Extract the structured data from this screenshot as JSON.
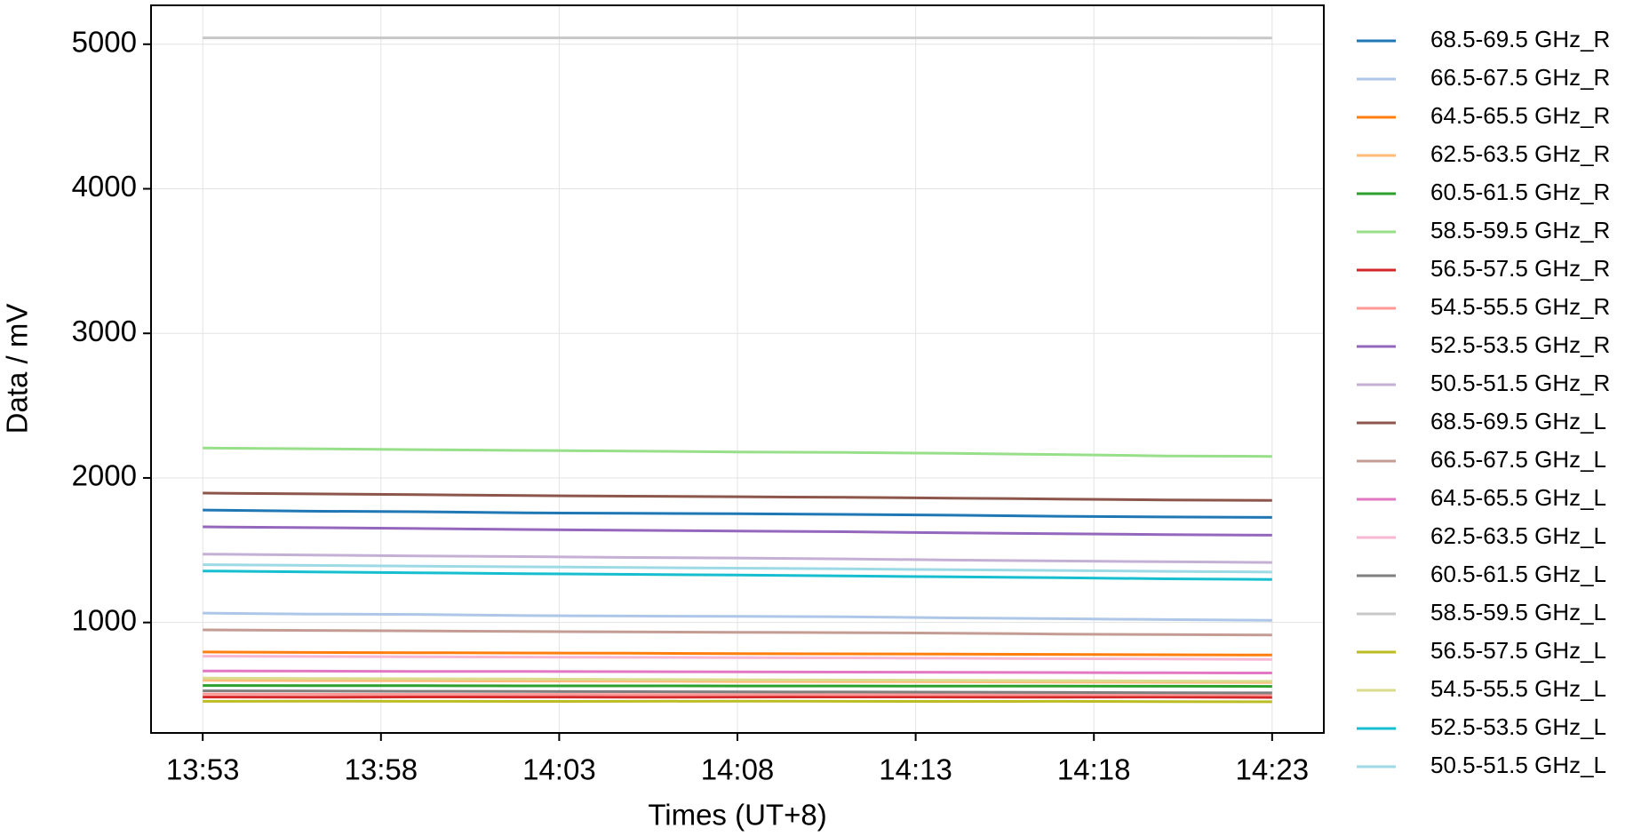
{
  "chart_data": {
    "type": "line",
    "x_label": "Times (UT+8)",
    "y_label": "Data / mV",
    "x": [
      "13:53",
      "13:56",
      "13:59",
      "14:02",
      "14:05",
      "14:08",
      "14:11",
      "14:14",
      "14:17",
      "14:20",
      "14:23"
    ],
    "xlim": [
      "13:51:33",
      "14:24:27"
    ],
    "xticks": [
      "13:53",
      "13:58",
      "14:03",
      "14:08",
      "14:13",
      "14:18",
      "14:23"
    ],
    "ylim": [
      236,
      5269
    ],
    "yticks": [
      1000,
      2000,
      3000,
      4000,
      5000
    ],
    "grid": true,
    "legend": "outside-right",
    "series": [
      {
        "name": "68.5-69.5 GHz_R",
        "color": "#1f77b4",
        "values": [
          1778,
          1770,
          1766,
          1758,
          1755,
          1752,
          1748,
          1742,
          1735,
          1730,
          1727
        ]
      },
      {
        "name": "66.5-67.5 GHz_R",
        "color": "#aec7e8",
        "values": [
          1065,
          1058,
          1056,
          1048,
          1045,
          1042,
          1040,
          1032,
          1026,
          1020,
          1015
        ]
      },
      {
        "name": "64.5-65.5 GHz_R",
        "color": "#ff7f0e",
        "values": [
          796,
          793,
          791,
          789,
          787,
          785,
          783,
          781,
          779,
          777,
          775
        ]
      },
      {
        "name": "62.5-63.5 GHz_R",
        "color": "#ffbb78",
        "values": [
          600,
          598,
          597,
          595,
          594,
          592,
          591,
          590,
          588,
          586,
          585
        ]
      },
      {
        "name": "60.5-61.5 GHz_R",
        "color": "#2ca02c",
        "values": [
          564,
          563,
          563,
          562,
          562,
          561,
          561,
          560,
          560,
          559,
          558
        ]
      },
      {
        "name": "58.5-59.5 GHz_R",
        "color": "#98df8a",
        "values": [
          2207,
          2202,
          2196,
          2190,
          2186,
          2180,
          2176,
          2170,
          2162,
          2152,
          2149
        ]
      },
      {
        "name": "56.5-57.5 GHz_R",
        "color": "#d62728",
        "values": [
          484,
          483,
          485,
          484,
          483,
          484,
          485,
          484,
          483,
          484,
          482
        ]
      },
      {
        "name": "54.5-55.5 GHz_R",
        "color": "#ff9896",
        "values": [
          505,
          504,
          503,
          503,
          502,
          502,
          501,
          501,
          500,
          500,
          499
        ]
      },
      {
        "name": "52.5-53.5 GHz_R",
        "color": "#9467bd",
        "values": [
          1662,
          1656,
          1650,
          1643,
          1638,
          1632,
          1628,
          1620,
          1614,
          1608,
          1604
        ]
      },
      {
        "name": "50.5-51.5 GHz_R",
        "color": "#c5b0d5",
        "values": [
          1473,
          1467,
          1461,
          1456,
          1450,
          1446,
          1440,
          1432,
          1426,
          1420,
          1415
        ]
      },
      {
        "name": "68.5-69.5 GHz_L",
        "color": "#8c564b",
        "values": [
          1895,
          1890,
          1884,
          1878,
          1874,
          1870,
          1866,
          1860,
          1854,
          1848,
          1844
        ]
      },
      {
        "name": "66.5-67.5 GHz_L",
        "color": "#c49c94",
        "values": [
          949,
          945,
          942,
          938,
          935,
          932,
          930,
          926,
          920,
          916,
          913
        ]
      },
      {
        "name": "64.5-65.5 GHz_L",
        "color": "#e377c2",
        "values": [
          665,
          664,
          662,
          661,
          660,
          658,
          657,
          656,
          654,
          652,
          651
        ]
      },
      {
        "name": "62.5-63.5 GHz_L",
        "color": "#f7b6d2",
        "values": [
          767,
          765,
          763,
          761,
          759,
          757,
          755,
          753,
          750,
          747,
          745
        ]
      },
      {
        "name": "60.5-61.5 GHz_L",
        "color": "#7f7f7f",
        "values": [
          527,
          526,
          524,
          523,
          522,
          520,
          519,
          518,
          516,
          514,
          513
        ]
      },
      {
        "name": "58.5-59.5 GHz_L",
        "color": "#c7c7c7",
        "values": [
          5044,
          5044,
          5044,
          5044,
          5044,
          5044,
          5044,
          5044,
          5044,
          5044,
          5043
        ]
      },
      {
        "name": "56.5-57.5 GHz_L",
        "color": "#bcbd22",
        "values": [
          455,
          456,
          455,
          454,
          455,
          456,
          455,
          454,
          455,
          453,
          452
        ]
      },
      {
        "name": "54.5-55.5 GHz_L",
        "color": "#dbdb8d",
        "values": [
          615,
          613,
          611,
          609,
          606,
          604,
          602,
          600,
          598,
          595,
          593
        ]
      },
      {
        "name": "52.5-53.5 GHz_L",
        "color": "#17becf",
        "values": [
          1356,
          1350,
          1344,
          1338,
          1333,
          1328,
          1322,
          1316,
          1310,
          1302,
          1298
        ]
      },
      {
        "name": "50.5-51.5 GHz_L",
        "color": "#9edae5",
        "values": [
          1400,
          1395,
          1390,
          1385,
          1380,
          1376,
          1371,
          1365,
          1360,
          1354,
          1349
        ]
      }
    ]
  }
}
